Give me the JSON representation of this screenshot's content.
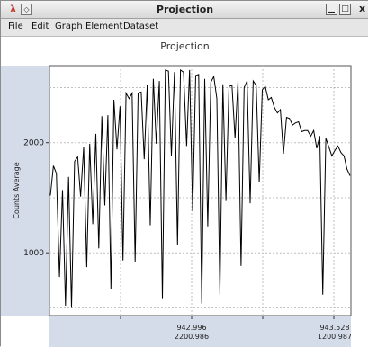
{
  "window": {
    "title": "Projection",
    "app_icon": "λ",
    "menu_glyph": "◇",
    "min_glyph": "▁",
    "max_glyph": "□",
    "close_glyph": "x"
  },
  "menu": [
    "File",
    "Edit",
    "Graph",
    "Element",
    "Dataset"
  ],
  "colors": {
    "plot_bg": "#ffffff",
    "axis_band": "#d4dcea",
    "grid": "#bfbfbf",
    "line": "#000000"
  },
  "chart_data": {
    "type": "line",
    "title": "Projection",
    "ylabel": "Counts Average",
    "xlabel": "",
    "yticks": [
      1000,
      2000
    ],
    "xticks": [
      {
        "top": "942.996",
        "bottom": "2200.986"
      },
      {
        "top": "943.528",
        "bottom": "1200.987"
      }
    ],
    "ylim": [
      430,
      2700
    ],
    "grid": true,
    "series": [
      {
        "values": [
          1520,
          1790,
          1720,
          780,
          1570,
          520,
          1690,
          500,
          1830,
          1870,
          1510,
          1960,
          870,
          1990,
          1260,
          2080,
          1040,
          2240,
          1430,
          2250,
          670,
          2390,
          1940,
          2330,
          930,
          2450,
          2400,
          2450,
          920,
          2450,
          2460,
          1850,
          2520,
          1250,
          2580,
          1990,
          2560,
          580,
          2660,
          2650,
          1880,
          2640,
          1070,
          2660,
          2640,
          1970,
          2660,
          1380,
          2610,
          2620,
          540,
          2580,
          1240,
          2550,
          2600,
          2400,
          620,
          2530,
          1470,
          2510,
          2520,
          2040,
          2560,
          880,
          2500,
          2560,
          1450,
          2560,
          2520,
          1640,
          2480,
          2510,
          2390,
          2410,
          2320,
          2270,
          2300,
          1900,
          2230,
          2220,
          2160,
          2180,
          2190,
          2100,
          2110,
          2110,
          2060,
          2110,
          1950,
          2060,
          620,
          2040,
          1960,
          1880,
          1930,
          1970,
          1910,
          1880,
          1760,
          1700
        ]
      }
    ]
  }
}
